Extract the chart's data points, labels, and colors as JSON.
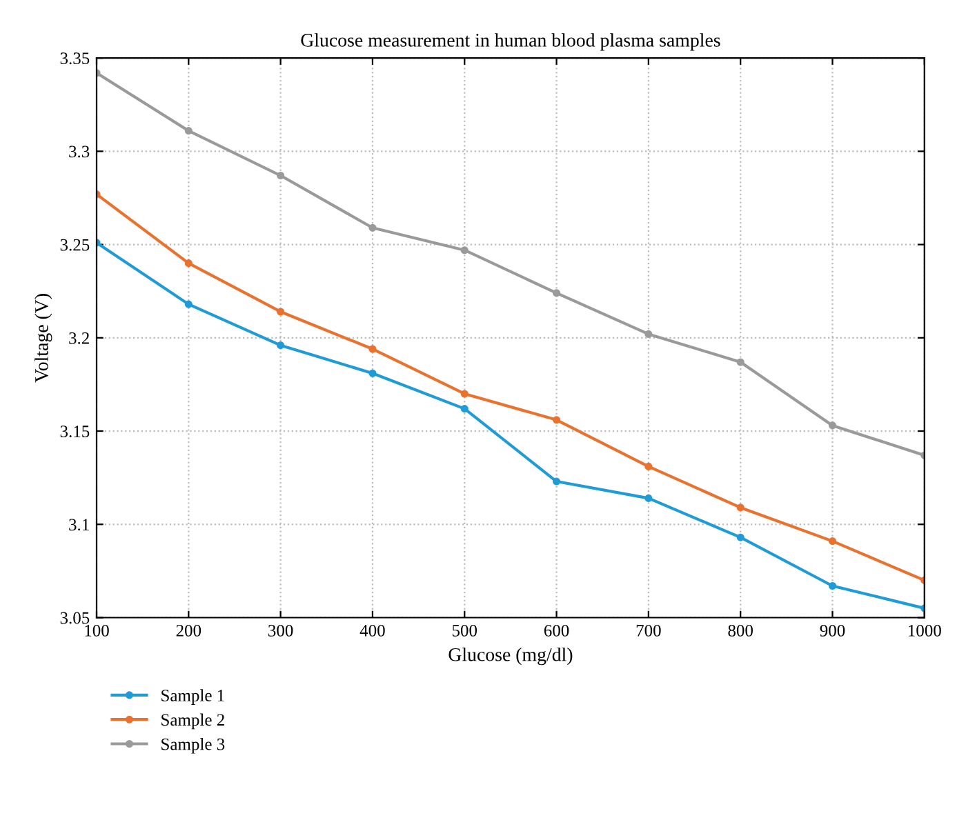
{
  "chart_data": {
    "type": "line",
    "title": "Glucose measurement in human blood plasma samples",
    "xlabel": "Glucose (mg/dl)",
    "ylabel": "Voltage (V)",
    "x": [
      100,
      200,
      300,
      400,
      500,
      600,
      700,
      800,
      900,
      1000
    ],
    "series": [
      {
        "name": "Sample 1",
        "color": "#1f9bd7",
        "values": [
          3.251,
          3.218,
          3.196,
          3.181,
          3.162,
          3.123,
          3.114,
          3.093,
          3.067,
          3.055
        ]
      },
      {
        "name": "Sample 2",
        "color": "#e8722e",
        "values": [
          3.277,
          3.24,
          3.214,
          3.194,
          3.17,
          3.156,
          3.131,
          3.109,
          3.091,
          3.07
        ]
      },
      {
        "name": "Sample 3",
        "color": "#9a9a9a",
        "values": [
          3.342,
          3.311,
          3.287,
          3.259,
          3.247,
          3.224,
          3.202,
          3.187,
          3.153,
          3.137
        ]
      }
    ],
    "xlim": [
      100,
      1000
    ],
    "xticks": [
      100,
      200,
      300,
      400,
      500,
      600,
      700,
      800,
      900,
      1000
    ],
    "ylim": [
      3.05,
      3.35
    ],
    "yticks": [
      3.05,
      3.1,
      3.15,
      3.2,
      3.25,
      3.3,
      3.35
    ],
    "grid": true,
    "legend": "bottom left",
    "marker": "circle",
    "line_style": "solid"
  }
}
